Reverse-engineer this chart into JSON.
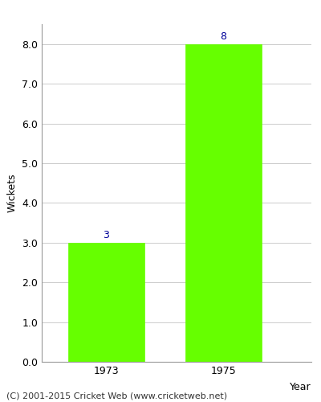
{
  "categories": [
    "1973",
    "1975"
  ],
  "values": [
    3,
    8
  ],
  "bar_color": "#66ff00",
  "bar_edge_color": "#66ff00",
  "xlabel": "Year",
  "ylabel": "Wickets",
  "ylim": [
    0,
    8.5
  ],
  "yticks": [
    0.0,
    1.0,
    2.0,
    3.0,
    4.0,
    5.0,
    6.0,
    7.0,
    8.0
  ],
  "annotation_color": "#000099",
  "annotation_fontsize": 9,
  "ylabel_fontsize": 9,
  "tick_fontsize": 9,
  "footer_text": "(C) 2001-2015 Cricket Web (www.cricketweb.net)",
  "footer_fontsize": 8,
  "background_color": "#ffffff",
  "grid_color": "#cccccc",
  "bar_width": 0.65
}
